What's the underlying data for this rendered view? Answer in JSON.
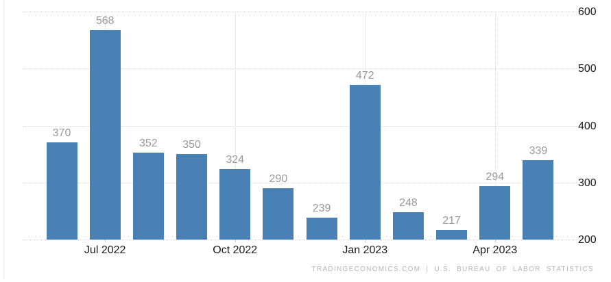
{
  "chart_data": {
    "type": "bar",
    "title": "",
    "values": [
      370,
      568,
      352,
      350,
      324,
      290,
      239,
      472,
      248,
      217,
      294,
      339
    ],
    "x_ticks": [
      {
        "index": 1,
        "label": "Jul 2022"
      },
      {
        "index": 4,
        "label": "Oct 2022"
      },
      {
        "index": 7,
        "label": "Jan 2023"
      },
      {
        "index": 10,
        "label": "Apr 2023"
      }
    ],
    "y_ticks": [
      200,
      300,
      400,
      500,
      600
    ],
    "ylim": [
      200,
      600
    ],
    "y_axis_side": "right",
    "grid": "dotted",
    "legend": "none",
    "colors": {
      "bar": "#4a81b4",
      "data_label": "#999999",
      "axis_label": "#1a1a1a",
      "gridline": "#d9d9d9"
    }
  },
  "attribution": {
    "text": "TRADINGECONOMICS.COM | U.S. BUREAU OF LABOR STATISTICS"
  }
}
